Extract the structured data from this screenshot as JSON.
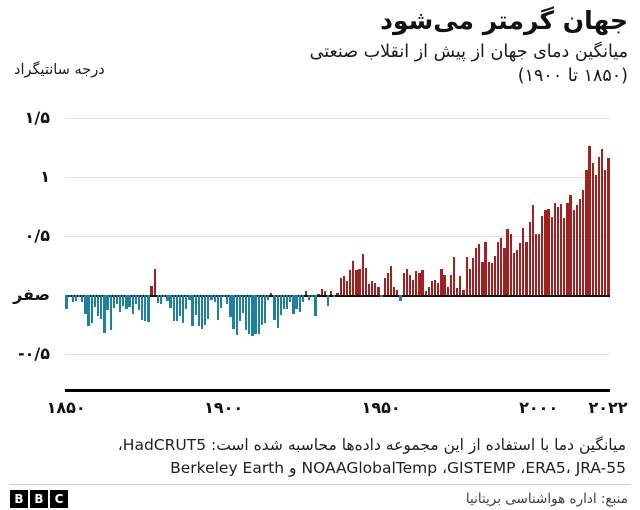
{
  "title": "جهان گرمتر می‌شود",
  "subtitle_line1": "میانگین دمای جهان از پیش از انقلاب صنعتی",
  "subtitle_line2": "(۱۸۵۰ تا ۱۹۰۰)",
  "y_axis_unit": "درجه سانتیگراد",
  "y_ticks": [
    {
      "value": 1.5,
      "label": "۱/۵"
    },
    {
      "value": 1.0,
      "label": "۱"
    },
    {
      "value": 0.5,
      "label": "۰/۵"
    },
    {
      "value": 0.0,
      "label": "صفر"
    },
    {
      "value": -0.5,
      "label": "-۰/۵"
    }
  ],
  "x_ticks": [
    {
      "year": 1850,
      "label": "۱۸۵۰"
    },
    {
      "year": 1900,
      "label": "۱۹۰۰"
    },
    {
      "year": 1950,
      "label": "۱۹۵۰"
    },
    {
      "year": 2000,
      "label": "۲۰۰۰"
    },
    {
      "year": 2022,
      "label": "۲۰۲۲"
    }
  ],
  "footnote_line1": "میانگین دما با استفاده از این مجموعه داده‌ها محاسبه شده است: HadCRUT5،",
  "footnote_line2": "NOAAGlobalTemp ،GISTEMP ،ERA5، JRA-55 و Berkeley Earth",
  "source": "منبع: اداره هواشناسی بریتانیا",
  "logo": {
    "letters": [
      "B",
      "B",
      "C"
    ]
  },
  "colors": {
    "positive": "#a32020",
    "negative": "#1e819e",
    "grid": "#e0e0e0",
    "zero_line": "#101010",
    "axis": "#000000"
  },
  "chart_data": {
    "type": "bar",
    "title": "جهان گرمتر می‌شود",
    "subtitle": "میانگین دمای جهان از پیش از انقلاب صنعتی (۱۸۵۰ تا ۱۹۰۰)",
    "ylabel": "درجه سانتیگراد",
    "ylim": [
      -0.5,
      1.5
    ],
    "grid": true,
    "start_year": 1850,
    "end_year": 2022,
    "values": [
      -0.12,
      -0.02,
      -0.06,
      -0.05,
      -0.02,
      -0.06,
      -0.16,
      -0.26,
      -0.24,
      -0.1,
      -0.18,
      -0.2,
      -0.32,
      -0.13,
      -0.3,
      -0.11,
      -0.08,
      -0.14,
      -0.09,
      -0.12,
      -0.1,
      -0.16,
      -0.08,
      -0.13,
      -0.21,
      -0.22,
      -0.23,
      0.08,
      0.22,
      -0.07,
      -0.08,
      -0.02,
      -0.05,
      -0.11,
      -0.22,
      -0.22,
      -0.18,
      -0.24,
      -0.12,
      -0.04,
      -0.26,
      -0.17,
      -0.26,
      -0.29,
      -0.25,
      -0.2,
      -0.04,
      -0.06,
      -0.21,
      -0.11,
      -0.02,
      -0.08,
      -0.19,
      -0.29,
      -0.34,
      -0.22,
      -0.15,
      -0.3,
      -0.33,
      -0.35,
      -0.33,
      -0.33,
      -0.25,
      -0.24,
      -0.04,
      0.02,
      -0.21,
      -0.28,
      -0.17,
      -0.12,
      -0.12,
      -0.06,
      -0.16,
      -0.12,
      -0.14,
      -0.06,
      0.03,
      -0.04,
      -0.02,
      -0.18,
      0.01,
      0.05,
      0.03,
      -0.09,
      0.03,
      -0.02,
      0.02,
      0.14,
      0.16,
      0.12,
      0.21,
      0.29,
      0.21,
      0.22,
      0.35,
      0.23,
      0.09,
      0.12,
      0.1,
      0.07,
      -0.02,
      0.14,
      0.19,
      0.25,
      0.07,
      0.04,
      -0.05,
      0.19,
      0.22,
      0.17,
      0.13,
      0.2,
      0.19,
      0.21,
      0.03,
      0.07,
      0.12,
      0.13,
      0.1,
      0.22,
      0.17,
      0.07,
      0.17,
      0.32,
      0.06,
      0.16,
      0.04,
      0.32,
      0.22,
      0.31,
      0.4,
      0.43,
      0.28,
      0.45,
      0.28,
      0.27,
      0.33,
      0.45,
      0.48,
      0.4,
      0.56,
      0.52,
      0.36,
      0.38,
      0.44,
      0.57,
      0.45,
      0.62,
      0.76,
      0.52,
      0.52,
      0.67,
      0.72,
      0.73,
      0.66,
      0.78,
      0.75,
      0.77,
      0.65,
      0.78,
      0.85,
      0.72,
      0.76,
      0.81,
      0.89,
      1.06,
      1.26,
      1.12,
      1.02,
      1.17,
      1.24,
      1.06,
      1.16
    ]
  }
}
